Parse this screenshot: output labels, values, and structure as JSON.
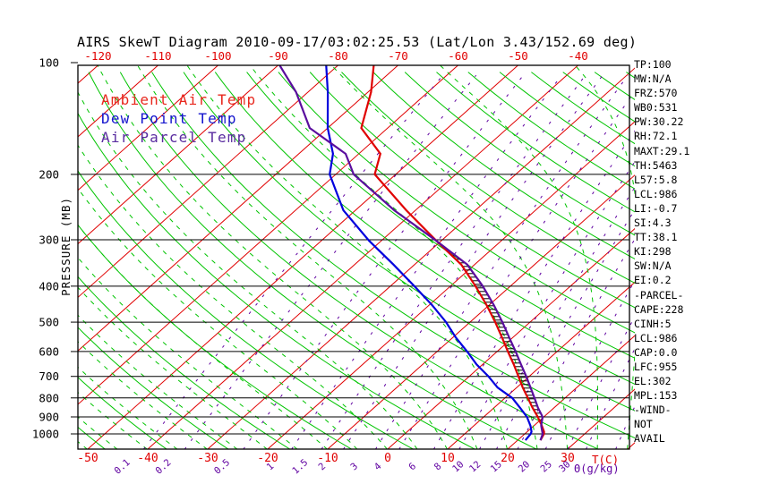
{
  "title": "AIRS SkewT Diagram 2010-09-17/03:02:25.53 (Lat/Lon 3.43/152.69 deg)",
  "legend": [
    {
      "label": "Ambient Air Temp",
      "color": "#e8281e"
    },
    {
      "label": "Dew Point Temp",
      "color": "#1414cd"
    },
    {
      "label": "Air Parcel Temp",
      "color": "#5a2da0"
    }
  ],
  "side_panel": [
    "TP:100",
    "MW:N/A",
    "FRZ:570",
    "WB0:531",
    "PW:30.22",
    "RH:72.1",
    "MAXT:29.1",
    "TH:5463",
    "L57:5.8",
    "LCL:986",
    "LI:-0.7",
    "SI:4.3",
    "TT:38.1",
    "KI:298",
    "SW:N/A",
    "EI:0.2",
    "-PARCEL-",
    "CAPE:228",
    "CINH:5",
    "LCL:986",
    "CAP:0.0",
    "LFC:955",
    "EL:302",
    "MPL:153",
    "-WIND-",
    "NOT",
    "AVAIL"
  ],
  "chart_data": {
    "type": "line",
    "subtype": "skewt-log-p",
    "title": "AIRS SkewT Diagram 2010-09-17/03:02:25.53 (Lat/Lon 3.43/152.69 deg)",
    "pressure_axis": {
      "label": "PRESSURE (MB)",
      "scale": "log",
      "ticks": [
        100,
        200,
        300,
        400,
        500,
        600,
        700,
        800,
        900,
        1000
      ],
      "range": [
        100,
        1101
      ]
    },
    "temp_axis": {
      "label": "T(C)",
      "top_labels": [
        -120,
        -110,
        -100,
        -90,
        -80,
        -70,
        -60,
        -50,
        -40
      ],
      "bottom_labels": [
        -50,
        -40,
        -30,
        -20,
        -10,
        0,
        10,
        20,
        30
      ]
    },
    "mixing_ratio_axis": {
      "label": "Θ(g/kg)",
      "labels": [
        "0.1",
        "0.2",
        "0.5",
        "1",
        "1.5",
        "2",
        "3",
        "4",
        "6",
        "8",
        "10",
        "12",
        "15",
        "20",
        "25",
        "30"
      ],
      "lines": [
        0.1,
        0.2,
        0.5,
        1,
        1.5,
        2,
        3,
        4,
        6,
        8,
        10,
        12,
        15,
        20,
        25,
        30,
        40
      ]
    },
    "isotherms": {
      "min": -160,
      "max": 40,
      "step": 10
    },
    "dry_adiabats": {
      "theta_k_min": 220,
      "theta_k_max": 460,
      "step_k": 10
    },
    "moist_adiabats": {
      "t0_min": -55,
      "t0_max": 40,
      "step": 5
    },
    "sounding": {
      "pressure": [
        1040,
        1000,
        986,
        950,
        900,
        850,
        800,
        750,
        700,
        650,
        600,
        550,
        500,
        450,
        400,
        350,
        302,
        250,
        200,
        176,
        150,
        120,
        100
      ],
      "ambient_temp": [
        23.8,
        23.2,
        22.8,
        21.3,
        19.0,
        16.4,
        13.8,
        11.0,
        8.2,
        5.2,
        1.8,
        -1.8,
        -5.8,
        -10.4,
        -15.8,
        -22.2,
        -30.8,
        -41.5,
        -53.5,
        -56.4,
        -64.4,
        -69.5,
        -74.5
      ],
      "dew_point": [
        21.3,
        21.0,
        20.7,
        19.4,
        17.2,
        14.3,
        11.2,
        6.8,
        3.2,
        -1.0,
        -5.0,
        -9.5,
        -14.0,
        -19.5,
        -26.0,
        -33.5,
        -42.0,
        -52.0,
        -61.0,
        -64.3,
        -70.0,
        -76.7,
        -82.5
      ],
      "parcel_temp": [
        23.8,
        23.0,
        22.5,
        21.2,
        19.8,
        17.3,
        14.9,
        12.3,
        9.5,
        6.4,
        3.1,
        -0.6,
        -4.6,
        -9.2,
        -14.6,
        -21.2,
        -30.8,
        -43.5,
        -57.0,
        -62.2,
        -73.0,
        -82.0,
        -90.5
      ]
    },
    "hatched_area": {
      "from_pressure": 986,
      "to_pressure": 303,
      "meaning": "parcel-ambient area (CAPE/CINH)"
    },
    "colors": {
      "isobar": "#000000",
      "isotherm": "#e00000",
      "dry_adiabat": "#00c400",
      "moist_adiabat": "#00c400",
      "mixing_ratio": "#5f00a0",
      "ambient": "#e00000",
      "dew_point": "#0000dd",
      "parcel": "#5a0d9e",
      "hatch": "#000000",
      "frame": "#000000",
      "axis_text_red": "#e00000",
      "axis_text_violet": "#5f00a0"
    }
  }
}
